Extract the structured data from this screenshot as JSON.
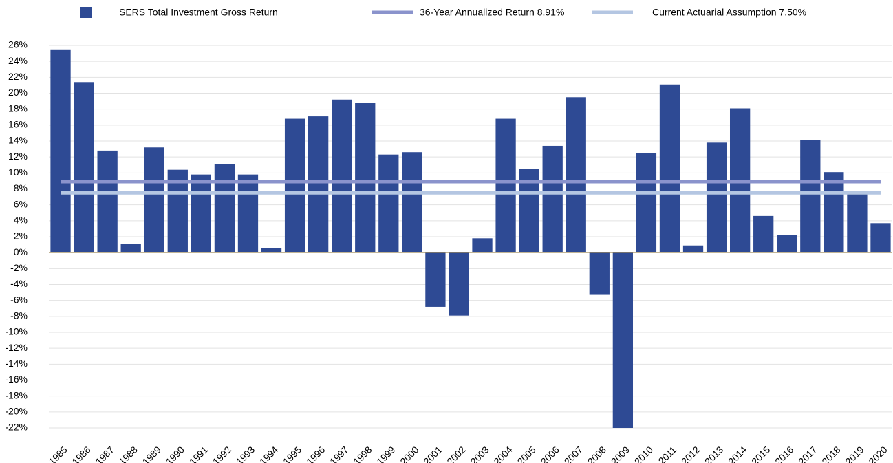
{
  "chart_data": {
    "type": "bar",
    "categories": [
      "1985",
      "1986",
      "1987",
      "1988",
      "1989",
      "1990",
      "1991",
      "1992",
      "1993",
      "1994",
      "1995",
      "1996",
      "1997",
      "1998",
      "1999",
      "2000",
      "2001",
      "2002",
      "2003",
      "2004",
      "2005",
      "2006",
      "2007",
      "2008",
      "2009",
      "2010",
      "2011",
      "2012",
      "2013",
      "2014",
      "2015",
      "2016",
      "2017",
      "2018",
      "2019",
      "2020"
    ],
    "series": [
      {
        "name": "SERS Total Investment Gross Return",
        "color": "#2e4a94",
        "values": [
          25.5,
          21.4,
          12.8,
          1.1,
          13.2,
          10.4,
          9.8,
          11.1,
          9.8,
          0.6,
          16.8,
          17.1,
          19.2,
          18.8,
          12.3,
          12.6,
          -6.8,
          -7.9,
          1.8,
          16.8,
          10.5,
          13.4,
          19.5,
          -5.3,
          -22,
          12.5,
          21.1,
          0.9,
          13.8,
          18.1,
          4.6,
          2.2,
          14.1,
          10.1,
          7.4,
          3.7
        ]
      }
    ],
    "reference_lines": [
      {
        "name": "36-Year Annualized Return 8.91%",
        "color": "#8a93cc",
        "value": 8.91
      },
      {
        "name": "Current Actuarial Assumption 7.50%",
        "color": "#b4c6e2",
        "value": 7.5
      }
    ],
    "ylim": [
      -22,
      26
    ],
    "yticks": [
      {
        "value": -22,
        "label": "-22%"
      },
      {
        "value": -20,
        "label": "-20%"
      },
      {
        "value": -18,
        "label": "-18%"
      },
      {
        "value": -16,
        "label": "-16%"
      },
      {
        "value": -14,
        "label": "-14%"
      },
      {
        "value": -12,
        "label": "-12%"
      },
      {
        "value": -10,
        "label": "-10%"
      },
      {
        "value": -8,
        "label": "-8%"
      },
      {
        "value": -6,
        "label": "-6%"
      },
      {
        "value": -4,
        "label": "-4%"
      },
      {
        "value": -2,
        "label": "-2%"
      },
      {
        "value": 0,
        "label": "0%"
      },
      {
        "value": 2,
        "label": "2%"
      },
      {
        "value": 4,
        "label": "4%"
      },
      {
        "value": 6,
        "label": "6%"
      },
      {
        "value": 8,
        "label": "8%"
      },
      {
        "value": 10,
        "label": "10%"
      },
      {
        "value": 12,
        "label": "12%"
      },
      {
        "value": 14,
        "label": "14%"
      },
      {
        "value": 16,
        "label": "16%"
      },
      {
        "value": 18,
        "label": "18%"
      },
      {
        "value": 20,
        "label": "20%"
      },
      {
        "value": 22,
        "label": "22%"
      },
      {
        "value": 24,
        "label": "24%"
      },
      {
        "value": 26,
        "label": "26%"
      }
    ],
    "grid": true
  }
}
